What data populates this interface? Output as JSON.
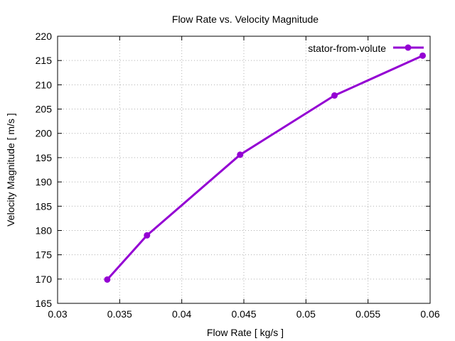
{
  "chart_data": {
    "type": "line",
    "title": "Flow Rate vs. Velocity Magnitude",
    "xlabel": "Flow Rate [ kg/s ]",
    "ylabel": "Velocity Magnitude [ m/s ]",
    "xlim": [
      0.03,
      0.06
    ],
    "ylim": [
      165,
      220
    ],
    "xticks": [
      0.03,
      0.035,
      0.04,
      0.045,
      0.05,
      0.055,
      0.06
    ],
    "yticks": [
      165,
      170,
      175,
      180,
      185,
      190,
      195,
      200,
      205,
      210,
      215,
      220
    ],
    "xtick_labels": [
      "0.03",
      "0.035",
      "0.04",
      "0.045",
      "0.05",
      "0.055",
      "0.06"
    ],
    "ytick_labels": [
      "165",
      "170",
      "175",
      "180",
      "185",
      "190",
      "195",
      "200",
      "205",
      "210",
      "215",
      "220"
    ],
    "grid": true,
    "legend_position": "top-right",
    "series": [
      {
        "name": "stator-from-volute",
        "color": "#9400d3",
        "x": [
          0.034,
          0.0372,
          0.0447,
          0.0523,
          0.0594
        ],
        "y": [
          169.9,
          179.0,
          195.6,
          207.8,
          216.0
        ]
      }
    ]
  }
}
